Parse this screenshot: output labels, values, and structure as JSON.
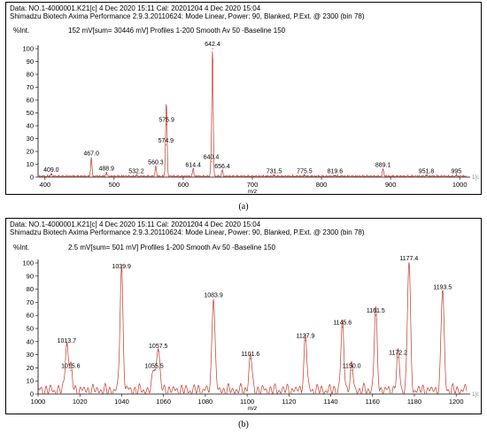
{
  "charts": [
    {
      "id": "a",
      "header_line1": "Data: NO.1-4000001.K21[c] 4 Dec 2020 15:11 Cal: 20201204 4 Dec 2020 15:04",
      "header_line2": "Shimadzu Biotech Axima Performance 2.9.3.20110624: Mode Linear, Power: 90, Blanked, P.Ext. @ 2300 (bin 78)",
      "intensity_label": "%Int.",
      "profile_info": "152 mV[sum= 30446 mV]  Profiles 1-200 Smooth Av 50 -Baseline 150",
      "caption": "(a)"
    },
    {
      "id": "b",
      "header_line1": "Data: NO.1-4000001.K21[c] 4 Dec 2020 15:11 Cal: 20201204 4 Dec 2020 15:04",
      "header_line2": "Shimadzu Biotech Axima Performance 2.9.3.20110624: Mode Linear, Power: 90, Blanked, P.Ext. @ 2300 (bin 78)",
      "intensity_label": "%Int.",
      "profile_info": "2.5 mV[sum= 501 mV]  Profiles 1-200 Smooth Av 50 -Baseline 150",
      "caption": "(b)"
    }
  ],
  "chart_data": [
    {
      "type": "line",
      "xlabel": "m/z",
      "ylabel": "%Int.",
      "xlim": [
        390,
        1010
      ],
      "ylim": [
        0,
        100
      ],
      "x_ticks": [
        400,
        500,
        600,
        700,
        800,
        900,
        1000
      ],
      "y_ticks": [
        0,
        10,
        20,
        30,
        40,
        50,
        60,
        70,
        80,
        90,
        100
      ],
      "axis_end_label": "1[c",
      "color": "#c0392b",
      "peaks": [
        {
          "x": 409.0,
          "y": 2,
          "label": "409.0"
        },
        {
          "x": 467.0,
          "y": 15,
          "label": "467.0"
        },
        {
          "x": 488.9,
          "y": 3,
          "label": "488.9"
        },
        {
          "x": 532.2,
          "y": 1,
          "label": "532.2"
        },
        {
          "x": 560.3,
          "y": 8,
          "label": "560.3"
        },
        {
          "x": 574.9,
          "y": 25,
          "label": "574.9"
        },
        {
          "x": 575.9,
          "y": 41,
          "label": "575.9"
        },
        {
          "x": 614.4,
          "y": 6,
          "label": "614.4"
        },
        {
          "x": 640.4,
          "y": 12,
          "label": "640.4"
        },
        {
          "x": 642.4,
          "y": 100,
          "label": "642.4"
        },
        {
          "x": 656.4,
          "y": 5,
          "label": "656.4"
        },
        {
          "x": 731.5,
          "y": 1,
          "label": "731.5"
        },
        {
          "x": 775.5,
          "y": 1,
          "label": "775.5"
        },
        {
          "x": 819.6,
          "y": 1,
          "label": "819.6"
        },
        {
          "x": 889.1,
          "y": 6,
          "label": "889.1"
        },
        {
          "x": 951.8,
          "y": 1,
          "label": "951.8"
        },
        {
          "x": 995,
          "y": 1,
          "label": "995"
        }
      ]
    },
    {
      "type": "line",
      "xlabel": "m/z",
      "ylabel": "%Int.",
      "xlim": [
        1000,
        1205
      ],
      "ylim": [
        0,
        100
      ],
      "x_ticks": [
        1000,
        1020,
        1040,
        1060,
        1080,
        1100,
        1120,
        1140,
        1160,
        1180,
        1200
      ],
      "y_ticks": [
        0,
        10,
        20,
        30,
        40,
        50,
        60,
        70,
        80,
        90,
        100
      ],
      "axis_end_label": "1[c",
      "color": "#c0392b",
      "peaks": [
        {
          "x": 1013.7,
          "y": 37,
          "label": "1013.7"
        },
        {
          "x": 1015.6,
          "y": 18,
          "label": "1015.6"
        },
        {
          "x": 1039.9,
          "y": 94,
          "label": "1039.9"
        },
        {
          "x": 1055.5,
          "y": 18,
          "label": "1055.5"
        },
        {
          "x": 1057.5,
          "y": 33,
          "label": "1057.5"
        },
        {
          "x": 1083.9,
          "y": 72,
          "label": "1083.9"
        },
        {
          "x": 1101.6,
          "y": 27,
          "label": "1101.6"
        },
        {
          "x": 1127.9,
          "y": 41,
          "label": "1127.9"
        },
        {
          "x": 1145.6,
          "y": 51,
          "label": "1145.6"
        },
        {
          "x": 1150.0,
          "y": 18,
          "label": "1150.0"
        },
        {
          "x": 1161.5,
          "y": 60,
          "label": "1161.5"
        },
        {
          "x": 1172.2,
          "y": 28,
          "label": "1172.2"
        },
        {
          "x": 1177.4,
          "y": 100,
          "label": "1177.4"
        },
        {
          "x": 1193.5,
          "y": 78,
          "label": "1193.5"
        }
      ]
    }
  ]
}
